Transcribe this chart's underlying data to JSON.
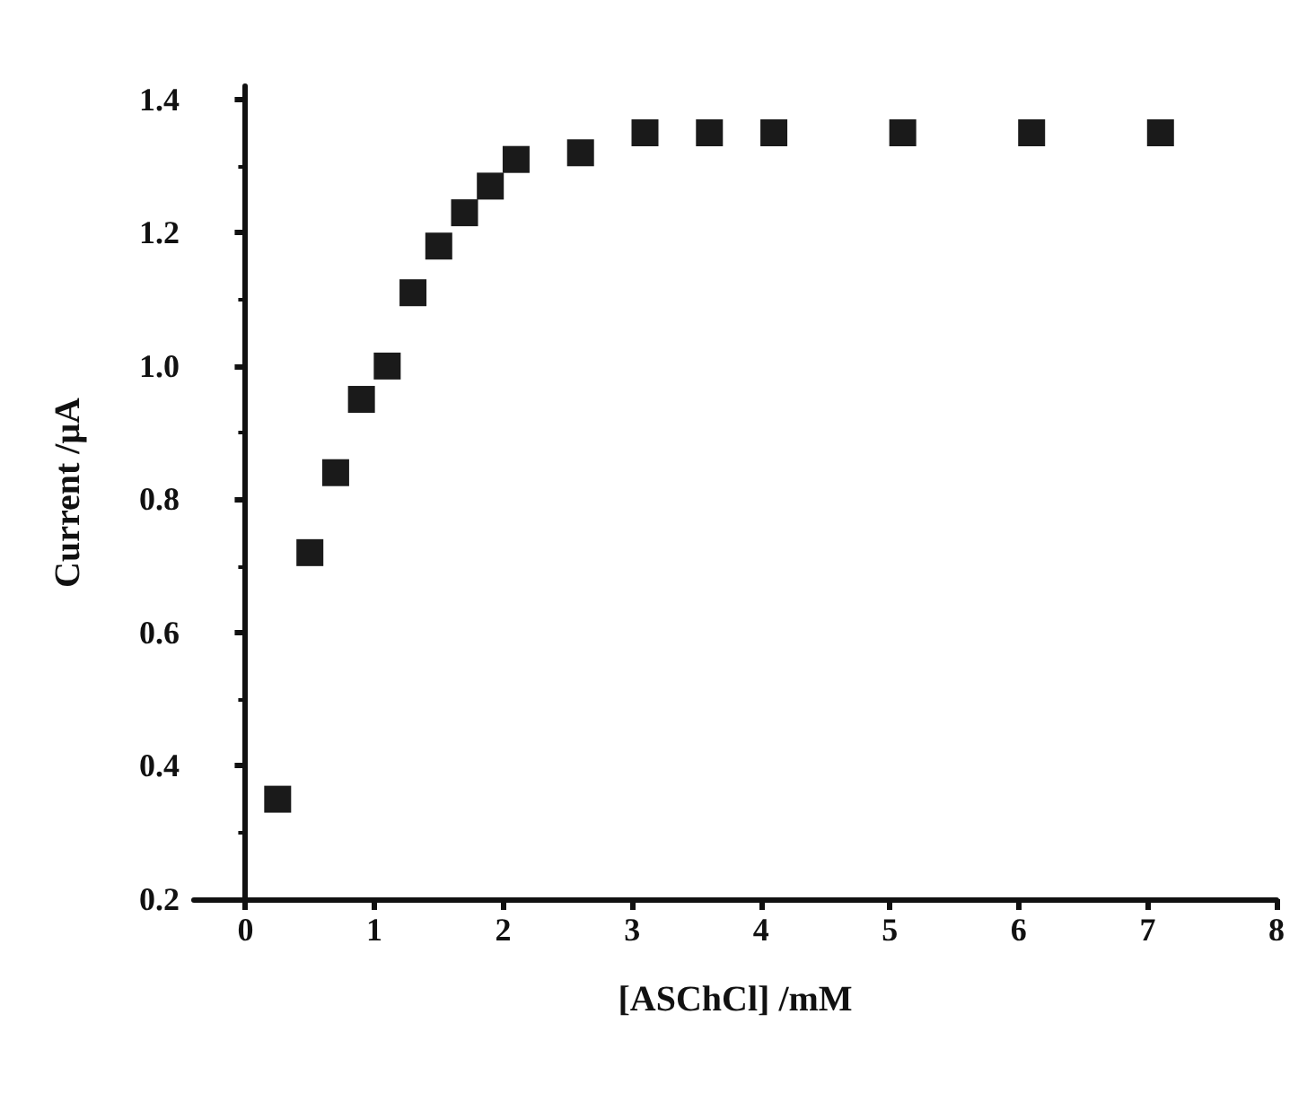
{
  "chart_data": {
    "type": "scatter",
    "xlabel": "[ASChCl] /mM",
    "ylabel": "Current /μA",
    "x": [
      0.25,
      0.5,
      0.7,
      0.9,
      1.1,
      1.3,
      1.5,
      1.7,
      1.9,
      2.1,
      2.6,
      3.1,
      3.6,
      4.1,
      5.1,
      6.1,
      7.1
    ],
    "series": [
      {
        "color": "#1a1a1a",
        "values": [
          0.35,
          0.72,
          0.84,
          0.95,
          1.0,
          1.11,
          1.18,
          1.23,
          1.27,
          1.31,
          1.32,
          1.35,
          1.35,
          1.35,
          1.35,
          1.35,
          1.35
        ]
      }
    ],
    "xlim": [
      -0.4,
      8
    ],
    "xticks": [
      0,
      1,
      2,
      3,
      4,
      5,
      6,
      7,
      8
    ],
    "ylim": [
      0.2,
      1.42
    ],
    "yticks": [
      0.2,
      0.4,
      0.6,
      0.8,
      {
        "value": 1,
        "label": "1.0"
      },
      1.2,
      1.4
    ],
    "grid": false,
    "marker": "square"
  }
}
